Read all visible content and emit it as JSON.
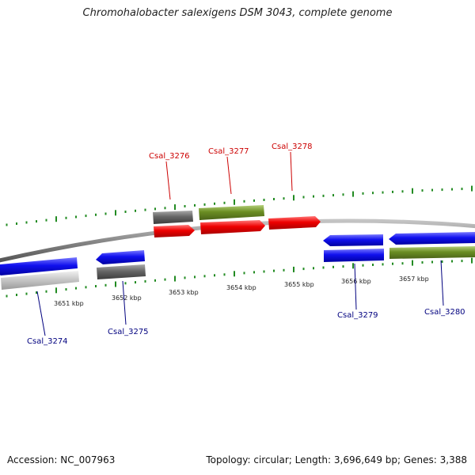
{
  "header": {
    "title": "Chromohalobacter salexigens DSM 3043, complete genome"
  },
  "footer": {
    "accession": "Accession: NC_007963",
    "topology": "Topology: circular; Length: 3,696,649 bp; Genes: 3,388"
  },
  "colors": {
    "forward_label": "#cc0000",
    "reverse_label": "#00007f",
    "tick": "#228b22",
    "backbone": "#888888",
    "red_gene": "#ee0000",
    "blue_gene": "#1010ee",
    "olive_gene": "#6b8e23",
    "gray_gene": "#666666",
    "lightgray_gene": "#c8c8c8"
  },
  "scale": {
    "labels": [
      "3651 kbp",
      "3652 kbp",
      "3653 kbp",
      "3654 kbp",
      "3655 kbp",
      "3656 kbp",
      "3657 kbp"
    ]
  },
  "genes": [
    {
      "id": "Csal_3274",
      "strand": "reverse"
    },
    {
      "id": "Csal_3275",
      "strand": "reverse"
    },
    {
      "id": "Csal_3276",
      "strand": "forward"
    },
    {
      "id": "Csal_3277",
      "strand": "forward"
    },
    {
      "id": "Csal_3278",
      "strand": "forward"
    },
    {
      "id": "Csal_3279",
      "strand": "reverse"
    },
    {
      "id": "Csal_3280",
      "strand": "reverse"
    }
  ]
}
